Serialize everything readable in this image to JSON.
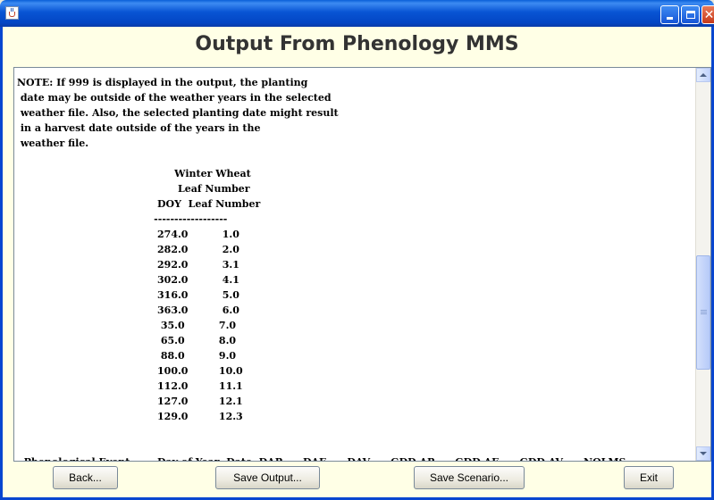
{
  "window": {
    "title": ""
  },
  "heading": "Output From Phenology MMS",
  "output": {
    "note_lines": [
      "NOTE: If 999 is displayed in the output, the planting",
      " date may be outside of the weather years in the selected",
      " weather file. Also, the selected planting date might result",
      " in a harvest date outside of the years in the",
      " weather file."
    ],
    "crop": "Winter Wheat",
    "variable": "Leaf Number",
    "columns": [
      "DOY",
      "Leaf Number"
    ],
    "separator": "------------------",
    "rows": [
      [
        "274.0",
        "1.0"
      ],
      [
        "282.0",
        "2.0"
      ],
      [
        "292.0",
        "3.1"
      ],
      [
        "302.0",
        "4.1"
      ],
      [
        "316.0",
        "5.0"
      ],
      [
        "363.0",
        "6.0"
      ],
      [
        "35.0",
        "7.0"
      ],
      [
        "65.0",
        "8.0"
      ],
      [
        "88.0",
        "9.0"
      ],
      [
        "100.0",
        "10.0"
      ],
      [
        "112.0",
        "11.1"
      ],
      [
        "127.0",
        "12.1"
      ],
      [
        "129.0",
        "12.3"
      ]
    ],
    "phenology_header": "  Phenological Event        Day of Year  Date  DAP      DAE      DAV      GDD AP      GDD AE      GDD AV      NOLMS"
  },
  "buttons": {
    "back": "Back...",
    "save_output": "Save Output...",
    "save_scenario": "Save Scenario...",
    "exit": "Exit"
  },
  "colors": {
    "client_bg": "#FFFFE6",
    "titlebar": "#0A5FD8",
    "close_button": "#C6391A"
  },
  "icons": [
    "java-cup-icon",
    "minimize-icon",
    "maximize-icon",
    "close-icon",
    "scroll-up-icon",
    "scroll-down-icon"
  ]
}
